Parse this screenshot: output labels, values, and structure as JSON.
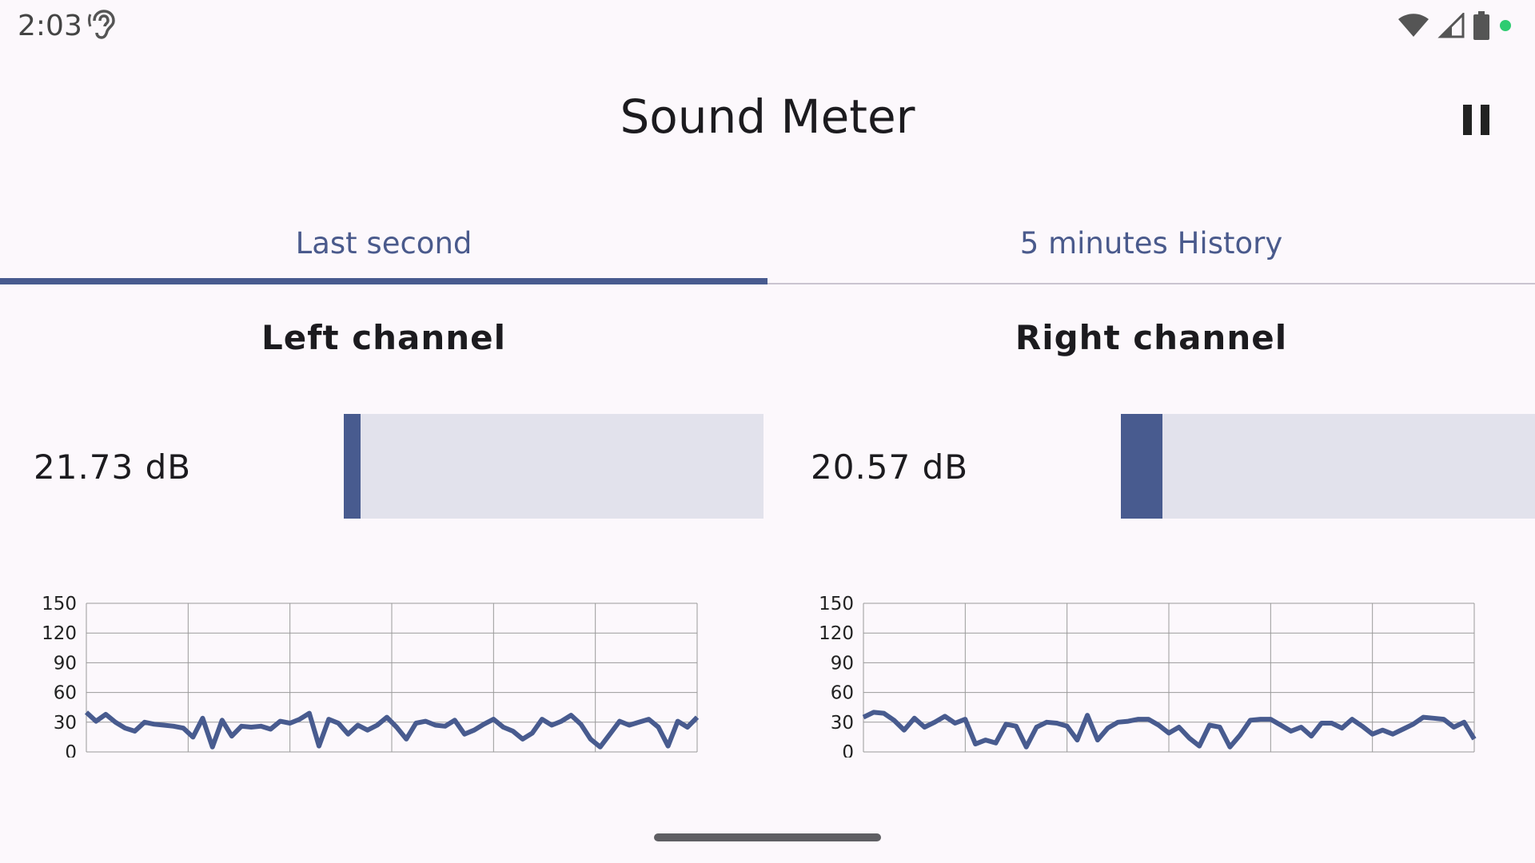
{
  "status_bar": {
    "time": "2:03",
    "ear_icon": "hearing-icon",
    "icons": [
      "wifi-icon",
      "cell-signal-icon",
      "battery-icon",
      "mic-active-dot"
    ],
    "dot_color": "#2ecc71"
  },
  "app_bar": {
    "title": "Sound Meter",
    "action_icon": "pause-icon"
  },
  "tabs": [
    {
      "label": "Last second",
      "selected": true
    },
    {
      "label": "5 minutes History",
      "selected": false
    }
  ],
  "colors": {
    "accent": "#485b8f",
    "track": "#e2e2ec",
    "background": "#fcf8fc"
  },
  "channels": {
    "left": {
      "title": "Left channel",
      "value_text": "21.73 dB",
      "meter_fraction": 0.04
    },
    "right": {
      "title": "Right channel",
      "value_text": "20.57 dB",
      "meter_fraction": 0.1
    }
  },
  "chart_data": [
    {
      "type": "line",
      "title": "",
      "xlabel": "",
      "ylabel": "",
      "ylim": [
        0,
        150
      ],
      "yticks": [
        "150",
        "120",
        "90",
        "60",
        "30",
        "0"
      ],
      "grid": true,
      "series": [
        {
          "values": [
            40,
            31,
            38,
            30,
            24,
            21,
            30,
            28,
            27,
            26,
            24,
            15,
            34,
            5,
            32,
            16,
            26,
            25,
            26,
            23,
            31,
            29,
            33,
            39,
            6,
            33,
            29,
            18,
            27,
            22,
            27,
            35,
            25,
            13,
            29,
            31,
            27,
            26,
            32,
            18,
            22,
            28,
            33,
            25,
            21,
            13,
            19,
            33,
            27,
            31,
            37,
            28,
            13,
            5,
            18,
            31,
            27,
            30,
            33,
            25,
            6,
            31,
            25,
            35
          ]
        }
      ]
    },
    {
      "type": "line",
      "title": "",
      "xlabel": "",
      "ylabel": "",
      "ylim": [
        0,
        150
      ],
      "yticks": [
        "150",
        "120",
        "90",
        "60",
        "30",
        "0"
      ],
      "grid": true,
      "series": [
        {
          "values": [
            35,
            40,
            39,
            32,
            22,
            34,
            25,
            30,
            36,
            29,
            33,
            8,
            12,
            9,
            28,
            26,
            5,
            25,
            30,
            29,
            26,
            12,
            37,
            12,
            24,
            30,
            31,
            33,
            33,
            27,
            19,
            25,
            14,
            6,
            27,
            25,
            5,
            17,
            32,
            33,
            33,
            27,
            21,
            25,
            16,
            29,
            29,
            24,
            33,
            26,
            18,
            22,
            18,
            23,
            28,
            35,
            34,
            33,
            25,
            30,
            13
          ]
        }
      ]
    }
  ]
}
